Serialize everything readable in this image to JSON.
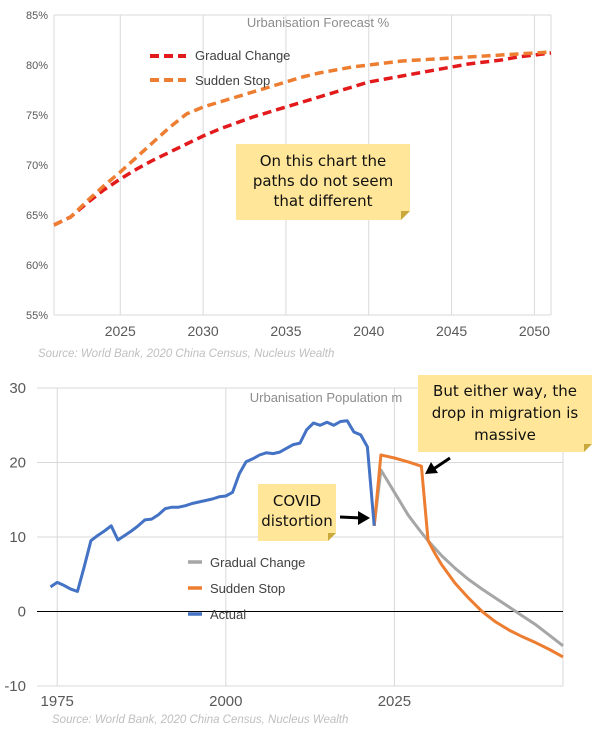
{
  "chart_data": [
    {
      "type": "line",
      "title": "Urbanisation Forecast %",
      "source": "Source: World Bank, 2020 China Census, Nucleus Wealth",
      "x_ticks": [
        "2025",
        "2030",
        "2035",
        "2040",
        "2045",
        "2050"
      ],
      "y_ticks": [
        "55%",
        "60%",
        "65%",
        "70%",
        "75%",
        "80%",
        "85%"
      ],
      "xlim": [
        2021,
        2051
      ],
      "ylim": [
        55,
        85
      ],
      "grid": "vertical",
      "legend_position": "top-left",
      "series": [
        {
          "name": "Gradual Change",
          "color": "#e31a1c",
          "dash": "dashed",
          "points": [
            [
              2021,
              64.0
            ],
            [
              2022,
              64.8
            ],
            [
              2023,
              66.2
            ],
            [
              2024,
              67.5
            ],
            [
              2025,
              68.6
            ],
            [
              2026,
              69.6
            ],
            [
              2027,
              70.5
            ],
            [
              2028,
              71.3
            ],
            [
              2029,
              72.1
            ],
            [
              2030,
              72.9
            ],
            [
              2031,
              73.6
            ],
            [
              2032,
              74.2
            ],
            [
              2033,
              74.8
            ],
            [
              2034,
              75.3
            ],
            [
              2035,
              75.8
            ],
            [
              2036,
              76.3
            ],
            [
              2037,
              76.8
            ],
            [
              2038,
              77.3
            ],
            [
              2039,
              77.8
            ],
            [
              2040,
              78.3
            ],
            [
              2041,
              78.6
            ],
            [
              2042,
              78.9
            ],
            [
              2043,
              79.2
            ],
            [
              2044,
              79.5
            ],
            [
              2045,
              79.8
            ],
            [
              2046,
              80.1
            ],
            [
              2047,
              80.3
            ],
            [
              2048,
              80.5
            ],
            [
              2049,
              80.8
            ],
            [
              2050,
              81.0
            ],
            [
              2051,
              81.2
            ]
          ]
        },
        {
          "name": "Sudden Stop",
          "color": "#ed7d31",
          "dash": "dashed",
          "points": [
            [
              2021,
              64.0
            ],
            [
              2022,
              64.8
            ],
            [
              2023,
              66.4
            ],
            [
              2024,
              67.9
            ],
            [
              2025,
              69.3
            ],
            [
              2026,
              70.8
            ],
            [
              2027,
              72.3
            ],
            [
              2028,
              73.8
            ],
            [
              2029,
              75.1
            ],
            [
              2030,
              75.8
            ],
            [
              2031,
              76.3
            ],
            [
              2032,
              76.8
            ],
            [
              2033,
              77.3
            ],
            [
              2034,
              77.8
            ],
            [
              2035,
              78.3
            ],
            [
              2036,
              78.8
            ],
            [
              2037,
              79.2
            ],
            [
              2038,
              79.5
            ],
            [
              2039,
              79.8
            ],
            [
              2040,
              80.0
            ],
            [
              2041,
              80.2
            ],
            [
              2042,
              80.4
            ],
            [
              2043,
              80.5
            ],
            [
              2044,
              80.6
            ],
            [
              2045,
              80.7
            ],
            [
              2046,
              80.8
            ],
            [
              2047,
              80.9
            ],
            [
              2048,
              81.0
            ],
            [
              2049,
              81.1
            ],
            [
              2050,
              81.2
            ],
            [
              2051,
              81.3
            ]
          ]
        }
      ],
      "annotation": "On this chart the\npaths do not seem\nthat different"
    },
    {
      "type": "line",
      "title": "Urbanisation Population m",
      "source": "Source: World Bank, 2020 China Census, Nucleus Wealth",
      "x_ticks": [
        "1975",
        "2000",
        "2025"
      ],
      "y_ticks": [
        "-10",
        "0",
        "10",
        "20",
        "30"
      ],
      "xlim": [
        1972,
        2050
      ],
      "ylim": [
        -10,
        30
      ],
      "grid": "horizontal",
      "legend_position": "center",
      "series": [
        {
          "name": "Gradual Change",
          "color": "#a6a6a6",
          "points": [
            [
              2022,
              11.5
            ],
            [
              2023,
              19.0
            ],
            [
              2024,
              17.5
            ],
            [
              2025,
              16.0
            ],
            [
              2026,
              14.5
            ],
            [
              2027,
              13.0
            ],
            [
              2028,
              11.8
            ],
            [
              2029,
              10.6
            ],
            [
              2030,
              9.5
            ],
            [
              2032,
              7.5
            ],
            [
              2034,
              5.8
            ],
            [
              2036,
              4.3
            ],
            [
              2038,
              3.0
            ],
            [
              2040,
              1.8
            ],
            [
              2042,
              0.6
            ],
            [
              2044,
              -0.6
            ],
            [
              2046,
              -1.8
            ],
            [
              2048,
              -3.2
            ],
            [
              2050,
              -4.6
            ]
          ]
        },
        {
          "name": "Sudden Stop",
          "color": "#ed7d31",
          "points": [
            [
              2022,
              11.5
            ],
            [
              2023,
              21.0
            ],
            [
              2025,
              20.6
            ],
            [
              2027,
              20.1
            ],
            [
              2029,
              19.5
            ],
            [
              2030,
              9.5
            ],
            [
              2031,
              7.8
            ],
            [
              2032,
              6.3
            ],
            [
              2034,
              3.8
            ],
            [
              2036,
              1.8
            ],
            [
              2038,
              0.0
            ],
            [
              2040,
              -1.4
            ],
            [
              2042,
              -2.5
            ],
            [
              2044,
              -3.4
            ],
            [
              2046,
              -4.2
            ],
            [
              2048,
              -5.1
            ],
            [
              2050,
              -6.1
            ]
          ]
        },
        {
          "name": "Actual",
          "color": "#4472c4",
          "points": [
            [
              1974,
              3.3
            ],
            [
              1975,
              3.9
            ],
            [
              1976,
              3.5
            ],
            [
              1977,
              3.0
            ],
            [
              1978,
              2.7
            ],
            [
              1979,
              6.0
            ],
            [
              1980,
              9.5
            ],
            [
              1981,
              10.2
            ],
            [
              1982,
              10.8
            ],
            [
              1983,
              11.5
            ],
            [
              1984,
              9.6
            ],
            [
              1985,
              10.2
            ],
            [
              1986,
              10.8
            ],
            [
              1987,
              11.5
            ],
            [
              1988,
              12.3
            ],
            [
              1989,
              12.4
            ],
            [
              1990,
              13.0
            ],
            [
              1991,
              13.8
            ],
            [
              1992,
              14.0
            ],
            [
              1993,
              14.0
            ],
            [
              1994,
              14.2
            ],
            [
              1995,
              14.5
            ],
            [
              1996,
              14.7
            ],
            [
              1997,
              14.9
            ],
            [
              1998,
              15.1
            ],
            [
              1999,
              15.4
            ],
            [
              2000,
              15.5
            ],
            [
              2001,
              16.0
            ],
            [
              2002,
              18.5
            ],
            [
              2003,
              20.1
            ],
            [
              2004,
              20.5
            ],
            [
              2005,
              21.0
            ],
            [
              2006,
              21.3
            ],
            [
              2007,
              21.2
            ],
            [
              2008,
              21.4
            ],
            [
              2009,
              21.9
            ],
            [
              2010,
              22.4
            ],
            [
              2011,
              22.6
            ],
            [
              2012,
              24.4
            ],
            [
              2013,
              25.3
            ],
            [
              2014,
              25.0
            ],
            [
              2015,
              25.4
            ],
            [
              2016,
              25.0
            ],
            [
              2017,
              25.5
            ],
            [
              2018,
              25.6
            ],
            [
              2019,
              24.1
            ],
            [
              2020,
              23.7
            ],
            [
              2021,
              22.1
            ],
            [
              2022,
              11.5
            ]
          ]
        }
      ],
      "annotations": [
        "COVID\ndistortion",
        "But either way, the\ndrop in migration is\nmassive"
      ]
    }
  ]
}
